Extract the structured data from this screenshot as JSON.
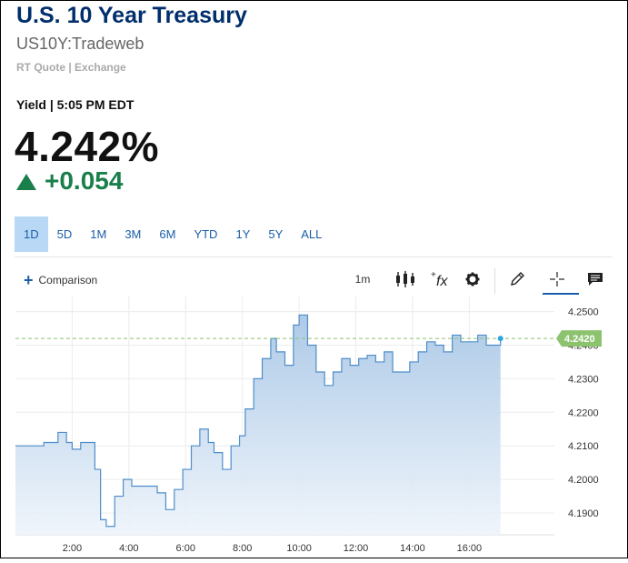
{
  "header": {
    "title": "U.S. 10 Year Treasury",
    "symbol": "US10Y:Tradeweb",
    "quote_source": "RT Quote | Exchange",
    "yield_time": "Yield | 5:05 PM EDT",
    "last": "4.242%",
    "change": "+0.054"
  },
  "ranges": [
    "1D",
    "5D",
    "1M",
    "3M",
    "6M",
    "YTD",
    "1Y",
    "5Y",
    "ALL"
  ],
  "active_range": "1D",
  "toolbar": {
    "comparison_label": "Comparison",
    "interval_label": "1m"
  },
  "colors": {
    "title": "#002f6c",
    "positive": "#1a7f4b",
    "line": "#4f8ec9",
    "last_price_tag": "#8dc26f"
  },
  "chart_data": {
    "type": "area",
    "x_ticks": [
      "2:00",
      "4:00",
      "6:00",
      "8:00",
      "10:00",
      "12:00",
      "14:00",
      "16:00"
    ],
    "y_ticks": [
      4.25,
      4.24,
      4.23,
      4.22,
      4.21,
      4.2,
      4.19
    ],
    "y_tick_labels": [
      "4.2500",
      "4.2400",
      "4.2300",
      "4.2200",
      "4.2100",
      "4.2000",
      "4.1900"
    ],
    "ylim": [
      4.1835,
      4.2545
    ],
    "xlim_hours": [
      0.0,
      19.0
    ],
    "last_value_label": "4.2420",
    "last_value": 4.242,
    "x_hours": [
      0.0,
      0.7,
      1.0,
      1.5,
      1.8,
      2.0,
      2.3,
      2.8,
      3.0,
      3.2,
      3.5,
      3.8,
      4.1,
      4.5,
      5.0,
      5.3,
      5.6,
      5.9,
      6.2,
      6.5,
      6.8,
      7.0,
      7.3,
      7.6,
      7.9,
      8.1,
      8.4,
      8.7,
      9.0,
      9.2,
      9.5,
      9.8,
      10.0,
      10.3,
      10.6,
      10.9,
      11.2,
      11.5,
      11.8,
      12.1,
      12.4,
      12.7,
      13.0,
      13.3,
      13.6,
      13.9,
      14.2,
      14.5,
      14.8,
      15.1,
      15.4,
      15.7,
      16.0,
      16.3,
      16.6,
      17.1
    ],
    "y_values": [
      4.21,
      4.21,
      4.211,
      4.214,
      4.211,
      4.209,
      4.211,
      4.203,
      4.188,
      4.186,
      4.195,
      4.2,
      4.198,
      4.198,
      4.196,
      4.191,
      4.197,
      4.203,
      4.21,
      4.215,
      4.211,
      4.208,
      4.203,
      4.21,
      4.213,
      4.221,
      4.23,
      4.236,
      4.242,
      4.238,
      4.234,
      4.246,
      4.249,
      4.24,
      4.232,
      4.228,
      4.232,
      4.236,
      4.234,
      4.236,
      4.237,
      4.235,
      4.238,
      4.232,
      4.232,
      4.235,
      4.238,
      4.241,
      4.24,
      4.238,
      4.243,
      4.241,
      4.241,
      4.243,
      4.24,
      4.242
    ]
  }
}
